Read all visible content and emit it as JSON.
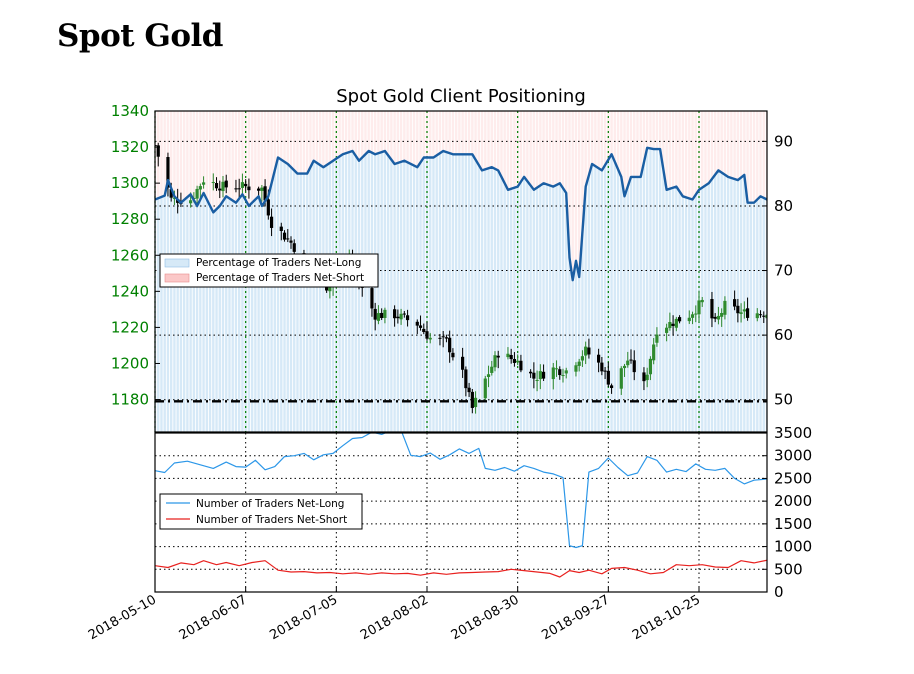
{
  "page_title": "Spot Gold",
  "chart_title": "Spot Gold Client Positioning",
  "colors": {
    "net_long_fill": "#d6e9f7",
    "net_short_fill": "#fbc8c8",
    "pct_line": "#1a5ea3",
    "count_long_line": "#2c97e8",
    "count_short_line": "#e8211f",
    "candle_up": "#2f8a2f",
    "candle_down": "#000000",
    "left_axis_text": "#008000",
    "vgrid": "#008000"
  },
  "chart_data": [
    {
      "type": "candlestick",
      "name": "price",
      "ylim": [
        1162,
        1340
      ],
      "yticks": [
        1180,
        1200,
        1220,
        1240,
        1260,
        1280,
        1300,
        1320,
        1340
      ],
      "tick_labels": [
        "1180",
        "1200",
        "1220",
        "1240",
        "1260",
        "1280",
        "1300",
        "1320",
        "1340"
      ],
      "close_path": [
        [
          "2018-05-10",
          1321
        ],
        [
          "2018-05-15",
          1291
        ],
        [
          "2018-05-21",
          1291
        ],
        [
          "2018-05-25",
          1302
        ],
        [
          "2018-05-31",
          1298
        ],
        [
          "2018-06-07",
          1298
        ],
        [
          "2018-06-12",
          1297
        ],
        [
          "2018-06-15",
          1278
        ],
        [
          "2018-06-21",
          1267
        ],
        [
          "2018-06-27",
          1252
        ],
        [
          "2018-07-02",
          1243
        ],
        [
          "2018-07-09",
          1258
        ],
        [
          "2018-07-13",
          1241
        ],
        [
          "2018-07-17",
          1227
        ],
        [
          "2018-07-23",
          1227
        ],
        [
          "2018-07-30",
          1222
        ],
        [
          "2018-08-03",
          1214
        ],
        [
          "2018-08-08",
          1212
        ],
        [
          "2018-08-13",
          1194
        ],
        [
          "2018-08-16",
          1175
        ],
        [
          "2018-08-20",
          1191
        ],
        [
          "2018-08-24",
          1206
        ],
        [
          "2018-08-30",
          1201
        ],
        [
          "2018-09-04",
          1192
        ],
        [
          "2018-09-10",
          1197
        ],
        [
          "2018-09-14",
          1196
        ],
        [
          "2018-09-20",
          1207
        ],
        [
          "2018-09-25",
          1198
        ],
        [
          "2018-09-28",
          1187
        ],
        [
          "2018-10-03",
          1202
        ],
        [
          "2018-10-08",
          1188
        ],
        [
          "2018-10-12",
          1219
        ],
        [
          "2018-10-17",
          1223
        ],
        [
          "2018-10-22",
          1227
        ],
        [
          "2018-10-26",
          1234
        ],
        [
          "2018-10-30",
          1222
        ],
        [
          "2018-11-02",
          1232
        ],
        [
          "2018-11-07",
          1228
        ]
      ],
      "reference_line": 1179
    },
    {
      "type": "line",
      "name": "positioning",
      "ylim": [
        45,
        94.7
      ],
      "yticks": [
        50,
        60,
        70,
        80,
        90
      ],
      "tick_labels": [
        "50",
        "60",
        "70",
        "80",
        "90"
      ],
      "legend": [
        "Percentage of Traders Net-Long",
        "Percentage of Traders Net-Short"
      ],
      "series": [
        {
          "points": [
            [
              "2018-05-10",
              81
            ],
            [
              "2018-05-13",
              81.6
            ],
            [
              "2018-05-14",
              84
            ],
            [
              "2018-05-16",
              81.5
            ],
            [
              "2018-05-18",
              80.5
            ],
            [
              "2018-05-21",
              81.8
            ],
            [
              "2018-05-23",
              80
            ],
            [
              "2018-05-25",
              82
            ],
            [
              "2018-05-28",
              79
            ],
            [
              "2018-05-30",
              80
            ],
            [
              "2018-06-01",
              81.5
            ],
            [
              "2018-06-04",
              80.5
            ],
            [
              "2018-06-06",
              81.8
            ],
            [
              "2018-06-08",
              80
            ],
            [
              "2018-06-11",
              81.5
            ],
            [
              "2018-06-12",
              80
            ],
            [
              "2018-06-14",
              81.5
            ],
            [
              "2018-06-17",
              87.5
            ],
            [
              "2018-06-20",
              86.5
            ],
            [
              "2018-06-23",
              85
            ],
            [
              "2018-06-26",
              85
            ],
            [
              "2018-06-28",
              87
            ],
            [
              "2018-07-01",
              86
            ],
            [
              "2018-07-04",
              87
            ],
            [
              "2018-07-07",
              88
            ],
            [
              "2018-07-10",
              88.5
            ],
            [
              "2018-07-12",
              87
            ],
            [
              "2018-07-15",
              88.5
            ],
            [
              "2018-07-17",
              88
            ],
            [
              "2018-07-20",
              88.5
            ],
            [
              "2018-07-23",
              86.5
            ],
            [
              "2018-07-26",
              87
            ],
            [
              "2018-07-30",
              86
            ],
            [
              "2018-08-01",
              87.5
            ],
            [
              "2018-08-04",
              87.5
            ],
            [
              "2018-08-07",
              88.5
            ],
            [
              "2018-08-10",
              88
            ],
            [
              "2018-08-13",
              88
            ],
            [
              "2018-08-16",
              88
            ],
            [
              "2018-08-19",
              85.5
            ],
            [
              "2018-08-22",
              86
            ],
            [
              "2018-08-24",
              85.5
            ],
            [
              "2018-08-27",
              82.5
            ],
            [
              "2018-08-30",
              83
            ],
            [
              "2018-09-01",
              84.5
            ],
            [
              "2018-09-04",
              82.5
            ],
            [
              "2018-09-07",
              83.5
            ],
            [
              "2018-09-10",
              83
            ],
            [
              "2018-09-12",
              83.5
            ],
            [
              "2018-09-14",
              82
            ],
            [
              "2018-09-15",
              72
            ],
            [
              "2018-09-16",
              68.5
            ],
            [
              "2018-09-17",
              71.5
            ],
            [
              "2018-09-18",
              69
            ],
            [
              "2018-09-20",
              83
            ],
            [
              "2018-09-22",
              86.5
            ],
            [
              "2018-09-25",
              85.5
            ],
            [
              "2018-09-28",
              88
            ],
            [
              "2018-10-01",
              84.5
            ],
            [
              "2018-10-02",
              81.5
            ],
            [
              "2018-10-04",
              84.5
            ],
            [
              "2018-10-07",
              84.5
            ],
            [
              "2018-10-09",
              89
            ],
            [
              "2018-10-11",
              88.8
            ],
            [
              "2018-10-13",
              88.8
            ],
            [
              "2018-10-15",
              82.5
            ],
            [
              "2018-10-18",
              83
            ],
            [
              "2018-10-20",
              81.5
            ],
            [
              "2018-10-23",
              81
            ],
            [
              "2018-10-25",
              82.5
            ],
            [
              "2018-10-28",
              83.5
            ],
            [
              "2018-10-31",
              85.5
            ],
            [
              "2018-11-03",
              84.5
            ],
            [
              "2018-11-06",
              84
            ],
            [
              "2018-11-08",
              84.8
            ],
            [
              "2018-11-09",
              80.5
            ],
            [
              "2018-11-11",
              80.5
            ],
            [
              "2018-11-13",
              81.5
            ],
            [
              "2018-11-15",
              81
            ]
          ]
        }
      ]
    },
    {
      "type": "line",
      "name": "counts",
      "ylim": [
        0,
        3500
      ],
      "yticks": [
        0,
        500,
        1000,
        1500,
        2000,
        2500,
        3000,
        3500
      ],
      "tick_labels": [
        "0",
        "500",
        "1000",
        "1500",
        "2000",
        "2500",
        "3000",
        "3500"
      ],
      "legend": [
        "Number of Traders Net-Long",
        "Number of Traders Net-Short"
      ],
      "series": [
        {
          "points": [
            [
              "2018-05-10",
              2670
            ],
            [
              "2018-05-13",
              2630
            ],
            [
              "2018-05-16",
              2840
            ],
            [
              "2018-05-20",
              2880
            ],
            [
              "2018-05-24",
              2800
            ],
            [
              "2018-05-28",
              2720
            ],
            [
              "2018-06-01",
              2860
            ],
            [
              "2018-06-04",
              2760
            ],
            [
              "2018-06-07",
              2750
            ],
            [
              "2018-06-10",
              2900
            ],
            [
              "2018-06-13",
              2690
            ],
            [
              "2018-06-16",
              2760
            ],
            [
              "2018-06-19",
              2980
            ],
            [
              "2018-06-22",
              3000
            ],
            [
              "2018-06-25",
              3050
            ],
            [
              "2018-06-28",
              2910
            ],
            [
              "2018-07-01",
              3020
            ],
            [
              "2018-07-04",
              3050
            ],
            [
              "2018-07-07",
              3220
            ],
            [
              "2018-07-10",
              3380
            ],
            [
              "2018-07-13",
              3400
            ],
            [
              "2018-07-16",
              3520
            ],
            [
              "2018-07-19",
              3470
            ],
            [
              "2018-07-22",
              3560
            ],
            [
              "2018-07-25",
              3560
            ],
            [
              "2018-07-28",
              3010
            ],
            [
              "2018-07-31",
              2980
            ],
            [
              "2018-08-03",
              3060
            ],
            [
              "2018-08-06",
              2920
            ],
            [
              "2018-08-09",
              3020
            ],
            [
              "2018-08-12",
              3150
            ],
            [
              "2018-08-15",
              3050
            ],
            [
              "2018-08-18",
              3160
            ],
            [
              "2018-08-20",
              2720
            ],
            [
              "2018-08-23",
              2680
            ],
            [
              "2018-08-26",
              2740
            ],
            [
              "2018-08-29",
              2660
            ],
            [
              "2018-09-01",
              2780
            ],
            [
              "2018-09-04",
              2720
            ],
            [
              "2018-09-07",
              2640
            ],
            [
              "2018-09-10",
              2600
            ],
            [
              "2018-09-13",
              2520
            ],
            [
              "2018-09-15",
              1020
            ],
            [
              "2018-09-17",
              980
            ],
            [
              "2018-09-19",
              1020
            ],
            [
              "2018-09-21",
              2640
            ],
            [
              "2018-09-24",
              2720
            ],
            [
              "2018-09-27",
              2950
            ],
            [
              "2018-09-30",
              2740
            ],
            [
              "2018-10-03",
              2560
            ],
            [
              "2018-10-06",
              2620
            ],
            [
              "2018-10-09",
              2980
            ],
            [
              "2018-10-12",
              2900
            ],
            [
              "2018-10-15",
              2640
            ],
            [
              "2018-10-18",
              2700
            ],
            [
              "2018-10-21",
              2650
            ],
            [
              "2018-10-24",
              2820
            ],
            [
              "2018-10-27",
              2700
            ],
            [
              "2018-10-30",
              2680
            ],
            [
              "2018-11-02",
              2720
            ],
            [
              "2018-11-05",
              2500
            ],
            [
              "2018-11-08",
              2380
            ],
            [
              "2018-11-11",
              2460
            ],
            [
              "2018-11-14",
              2480
            ],
            [
              "2018-11-15",
              2490
            ]
          ]
        },
        {
          "points": [
            [
              "2018-05-10",
              580
            ],
            [
              "2018-05-14",
              540
            ],
            [
              "2018-05-18",
              640
            ],
            [
              "2018-05-22",
              600
            ],
            [
              "2018-05-25",
              690
            ],
            [
              "2018-05-29",
              600
            ],
            [
              "2018-06-01",
              650
            ],
            [
              "2018-06-05",
              580
            ],
            [
              "2018-06-09",
              650
            ],
            [
              "2018-06-13",
              690
            ],
            [
              "2018-06-17",
              480
            ],
            [
              "2018-06-21",
              440
            ],
            [
              "2018-06-25",
              450
            ],
            [
              "2018-06-29",
              420
            ],
            [
              "2018-07-03",
              430
            ],
            [
              "2018-07-07",
              400
            ],
            [
              "2018-07-11",
              420
            ],
            [
              "2018-07-15",
              390
            ],
            [
              "2018-07-19",
              420
            ],
            [
              "2018-07-23",
              400
            ],
            [
              "2018-07-27",
              410
            ],
            [
              "2018-07-31",
              370
            ],
            [
              "2018-08-04",
              420
            ],
            [
              "2018-08-08",
              390
            ],
            [
              "2018-08-12",
              420
            ],
            [
              "2018-08-16",
              430
            ],
            [
              "2018-08-20",
              440
            ],
            [
              "2018-08-24",
              450
            ],
            [
              "2018-08-28",
              500
            ],
            [
              "2018-09-01",
              470
            ],
            [
              "2018-09-05",
              440
            ],
            [
              "2018-09-09",
              410
            ],
            [
              "2018-09-12",
              330
            ],
            [
              "2018-09-15",
              470
            ],
            [
              "2018-09-18",
              430
            ],
            [
              "2018-09-21",
              480
            ],
            [
              "2018-09-25",
              400
            ],
            [
              "2018-09-28",
              520
            ],
            [
              "2018-10-02",
              540
            ],
            [
              "2018-10-06",
              480
            ],
            [
              "2018-10-10",
              400
            ],
            [
              "2018-10-14",
              430
            ],
            [
              "2018-10-18",
              600
            ],
            [
              "2018-10-22",
              580
            ],
            [
              "2018-10-26",
              600
            ],
            [
              "2018-10-30",
              550
            ],
            [
              "2018-11-03",
              540
            ],
            [
              "2018-11-07",
              690
            ],
            [
              "2018-11-11",
              640
            ],
            [
              "2018-11-15",
              700
            ]
          ]
        }
      ]
    }
  ],
  "x_axis": {
    "xlim": [
      "2018-05-10",
      "2018-11-15"
    ],
    "ticks": [
      "2018-05-10",
      "2018-06-07",
      "2018-07-05",
      "2018-08-02",
      "2018-08-30",
      "2018-09-27",
      "2018-10-25"
    ]
  }
}
